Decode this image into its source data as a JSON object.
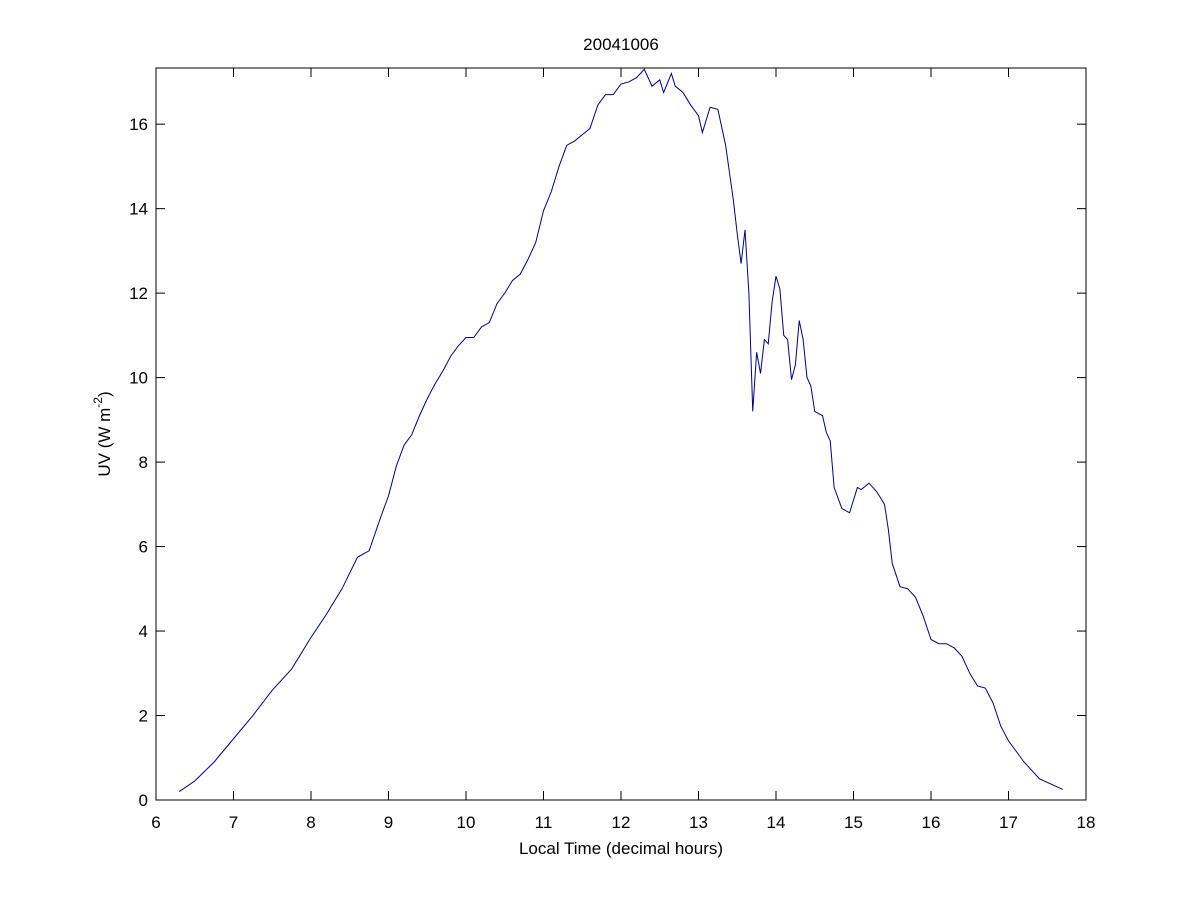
{
  "chart_data": {
    "type": "line",
    "title": "20041006",
    "x_label": "Local Time (decimal hours)",
    "y_label": [
      "UV (W m",
      "-2",
      ")"
    ],
    "xlim": [
      6,
      18
    ],
    "xticks": [
      6,
      7,
      8,
      9,
      10,
      11,
      12,
      13,
      14,
      15,
      16,
      17,
      18
    ],
    "ylim": [
      0,
      17.33
    ],
    "yticks": [
      0,
      2,
      4,
      6,
      8,
      10,
      12,
      14,
      16
    ],
    "grid": false,
    "series": [
      {
        "color": "#00008b",
        "x": [
          6.3,
          6.5,
          6.75,
          7.0,
          7.25,
          7.5,
          7.75,
          8.0,
          8.2,
          8.4,
          8.6,
          8.75,
          8.9,
          9.0,
          9.1,
          9.2,
          9.3,
          9.4,
          9.5,
          9.6,
          9.7,
          9.8,
          9.9,
          10.0,
          10.1,
          10.2,
          10.3,
          10.4,
          10.5,
          10.6,
          10.7,
          10.8,
          10.9,
          11.0,
          11.1,
          11.2,
          11.3,
          11.4,
          11.5,
          11.6,
          11.7,
          11.8,
          11.9,
          12.0,
          12.1,
          12.2,
          12.3,
          12.4,
          12.5,
          12.55,
          12.65,
          12.7,
          12.8,
          12.9,
          13.0,
          13.05,
          13.15,
          13.25,
          13.35,
          13.45,
          13.5,
          13.55,
          13.6,
          13.65,
          13.7,
          13.75,
          13.8,
          13.85,
          13.9,
          13.95,
          14.0,
          14.05,
          14.1,
          14.15,
          14.2,
          14.25,
          14.3,
          14.35,
          14.4,
          14.45,
          14.5,
          14.6,
          14.65,
          14.7,
          14.75,
          14.85,
          14.95,
          15.05,
          15.1,
          15.2,
          15.3,
          15.4,
          15.45,
          15.5,
          15.6,
          15.7,
          15.8,
          15.9,
          16.0,
          16.1,
          16.2,
          16.3,
          16.4,
          16.5,
          16.6,
          16.7,
          16.8,
          16.9,
          17.0,
          17.2,
          17.4,
          17.7
        ],
        "values": [
          0.2,
          0.45,
          0.9,
          1.45,
          2.0,
          2.6,
          3.1,
          3.85,
          4.4,
          5.0,
          5.75,
          5.9,
          6.7,
          7.2,
          7.9,
          8.4,
          8.65,
          9.1,
          9.5,
          9.85,
          10.15,
          10.5,
          10.75,
          10.95,
          10.95,
          11.2,
          11.3,
          11.75,
          12.0,
          12.3,
          12.45,
          12.8,
          13.2,
          13.95,
          14.4,
          15.0,
          15.5,
          15.6,
          15.75,
          15.9,
          16.45,
          16.7,
          16.7,
          16.95,
          17.0,
          17.1,
          17.3,
          16.9,
          17.05,
          16.75,
          17.2,
          16.9,
          16.75,
          16.45,
          16.2,
          15.8,
          16.4,
          16.35,
          15.5,
          14.2,
          13.4,
          12.7,
          13.5,
          12.0,
          9.2,
          10.6,
          10.1,
          10.9,
          10.8,
          11.8,
          12.4,
          12.1,
          11.0,
          10.9,
          9.95,
          10.3,
          11.35,
          10.9,
          10.0,
          9.8,
          9.2,
          9.1,
          8.7,
          8.5,
          7.4,
          6.9,
          6.8,
          7.4,
          7.35,
          7.5,
          7.3,
          7.0,
          6.4,
          5.6,
          5.05,
          5.0,
          4.8,
          4.35,
          3.8,
          3.7,
          3.7,
          3.6,
          3.4,
          3.0,
          2.7,
          2.65,
          2.3,
          1.75,
          1.4,
          0.9,
          0.5,
          0.25
        ]
      }
    ]
  }
}
